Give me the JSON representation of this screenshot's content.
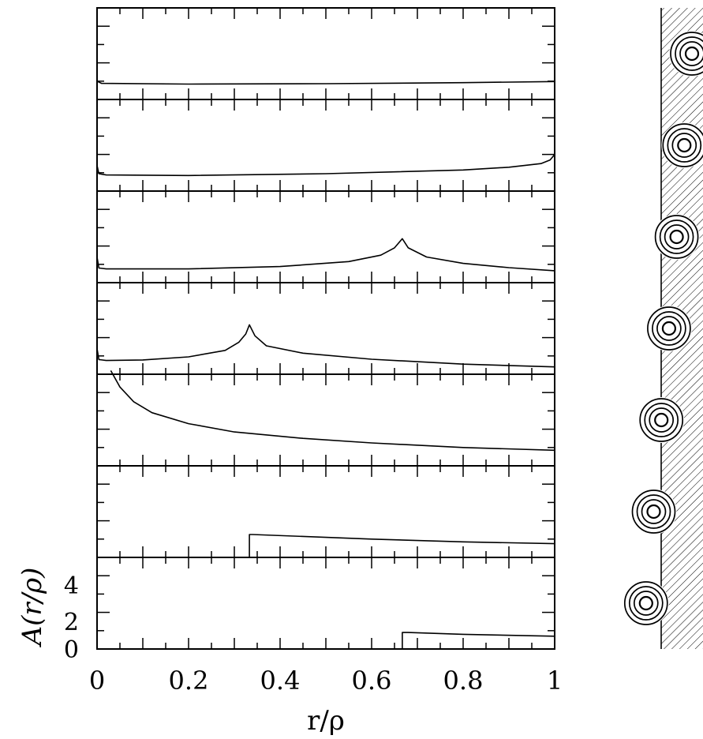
{
  "chart_data": {
    "type": "line",
    "xlabel": "r/ρ",
    "ylabel": "A(r/ρ)",
    "xlim": [
      0,
      1
    ],
    "ylim": [
      0,
      5
    ],
    "x_ticks": [
      "0",
      "0.2",
      "0.4",
      "0.6",
      "0.8",
      "1"
    ],
    "y_ticks": [
      "0",
      "2",
      "4"
    ],
    "panels": [
      {
        "series": [
          {
            "x": [
              0,
              0.01,
              0.2,
              0.5,
              0.8,
              1.0
            ],
            "y": [
              1.0,
              0.88,
              0.84,
              0.86,
              0.92,
              0.98
            ]
          }
        ]
      },
      {
        "series": [
          {
            "x": [
              0,
              0.004,
              0.02,
              0.2,
              0.5,
              0.8,
              0.9,
              0.97,
              0.99,
              1.0
            ],
            "y": [
              1.4,
              0.95,
              0.88,
              0.85,
              0.95,
              1.15,
              1.3,
              1.5,
              1.7,
              2.0
            ]
          }
        ]
      },
      {
        "series": [
          {
            "x": [
              0,
              0.004,
              0.02,
              0.2,
              0.4,
              0.55,
              0.62,
              0.65,
              0.667,
              0.68,
              0.72,
              0.8,
              0.9,
              1.0
            ],
            "y": [
              1.4,
              0.8,
              0.75,
              0.75,
              0.88,
              1.15,
              1.5,
              1.9,
              2.4,
              1.9,
              1.4,
              1.05,
              0.82,
              0.65
            ]
          }
        ]
      },
      {
        "series": [
          {
            "x": [
              0,
              0.004,
              0.02,
              0.1,
              0.2,
              0.28,
              0.31,
              0.325,
              0.333,
              0.345,
              0.37,
              0.45,
              0.6,
              0.8,
              1.0
            ],
            "y": [
              1.4,
              0.8,
              0.75,
              0.78,
              0.95,
              1.3,
              1.75,
              2.2,
              2.7,
              2.1,
              1.55,
              1.15,
              0.82,
              0.55,
              0.4
            ]
          }
        ]
      },
      {
        "series": [
          {
            "x": [
              0.03,
              0.05,
              0.08,
              0.12,
              0.2,
              0.3,
              0.45,
              0.6,
              0.8,
              1.0
            ],
            "y": [
              5.2,
              4.3,
              3.5,
              2.9,
              2.3,
              1.85,
              1.5,
              1.25,
              1.0,
              0.85
            ]
          }
        ]
      },
      {
        "series": [
          {
            "x": [
              0.333,
              0.333,
              0.34,
              0.6,
              0.8,
              1.0
            ],
            "y": [
              0,
              1.25,
              1.25,
              1.0,
              0.85,
              0.75
            ]
          }
        ]
      },
      {
        "series": [
          {
            "x": [
              0.667,
              0.667,
              0.68,
              0.8,
              1.0
            ],
            "y": [
              0,
              0.9,
              0.9,
              0.8,
              0.7
            ]
          }
        ]
      }
    ],
    "schematic": {
      "rings": 3,
      "ring_sets": 7
    },
    "grid": false,
    "legend": "none"
  }
}
